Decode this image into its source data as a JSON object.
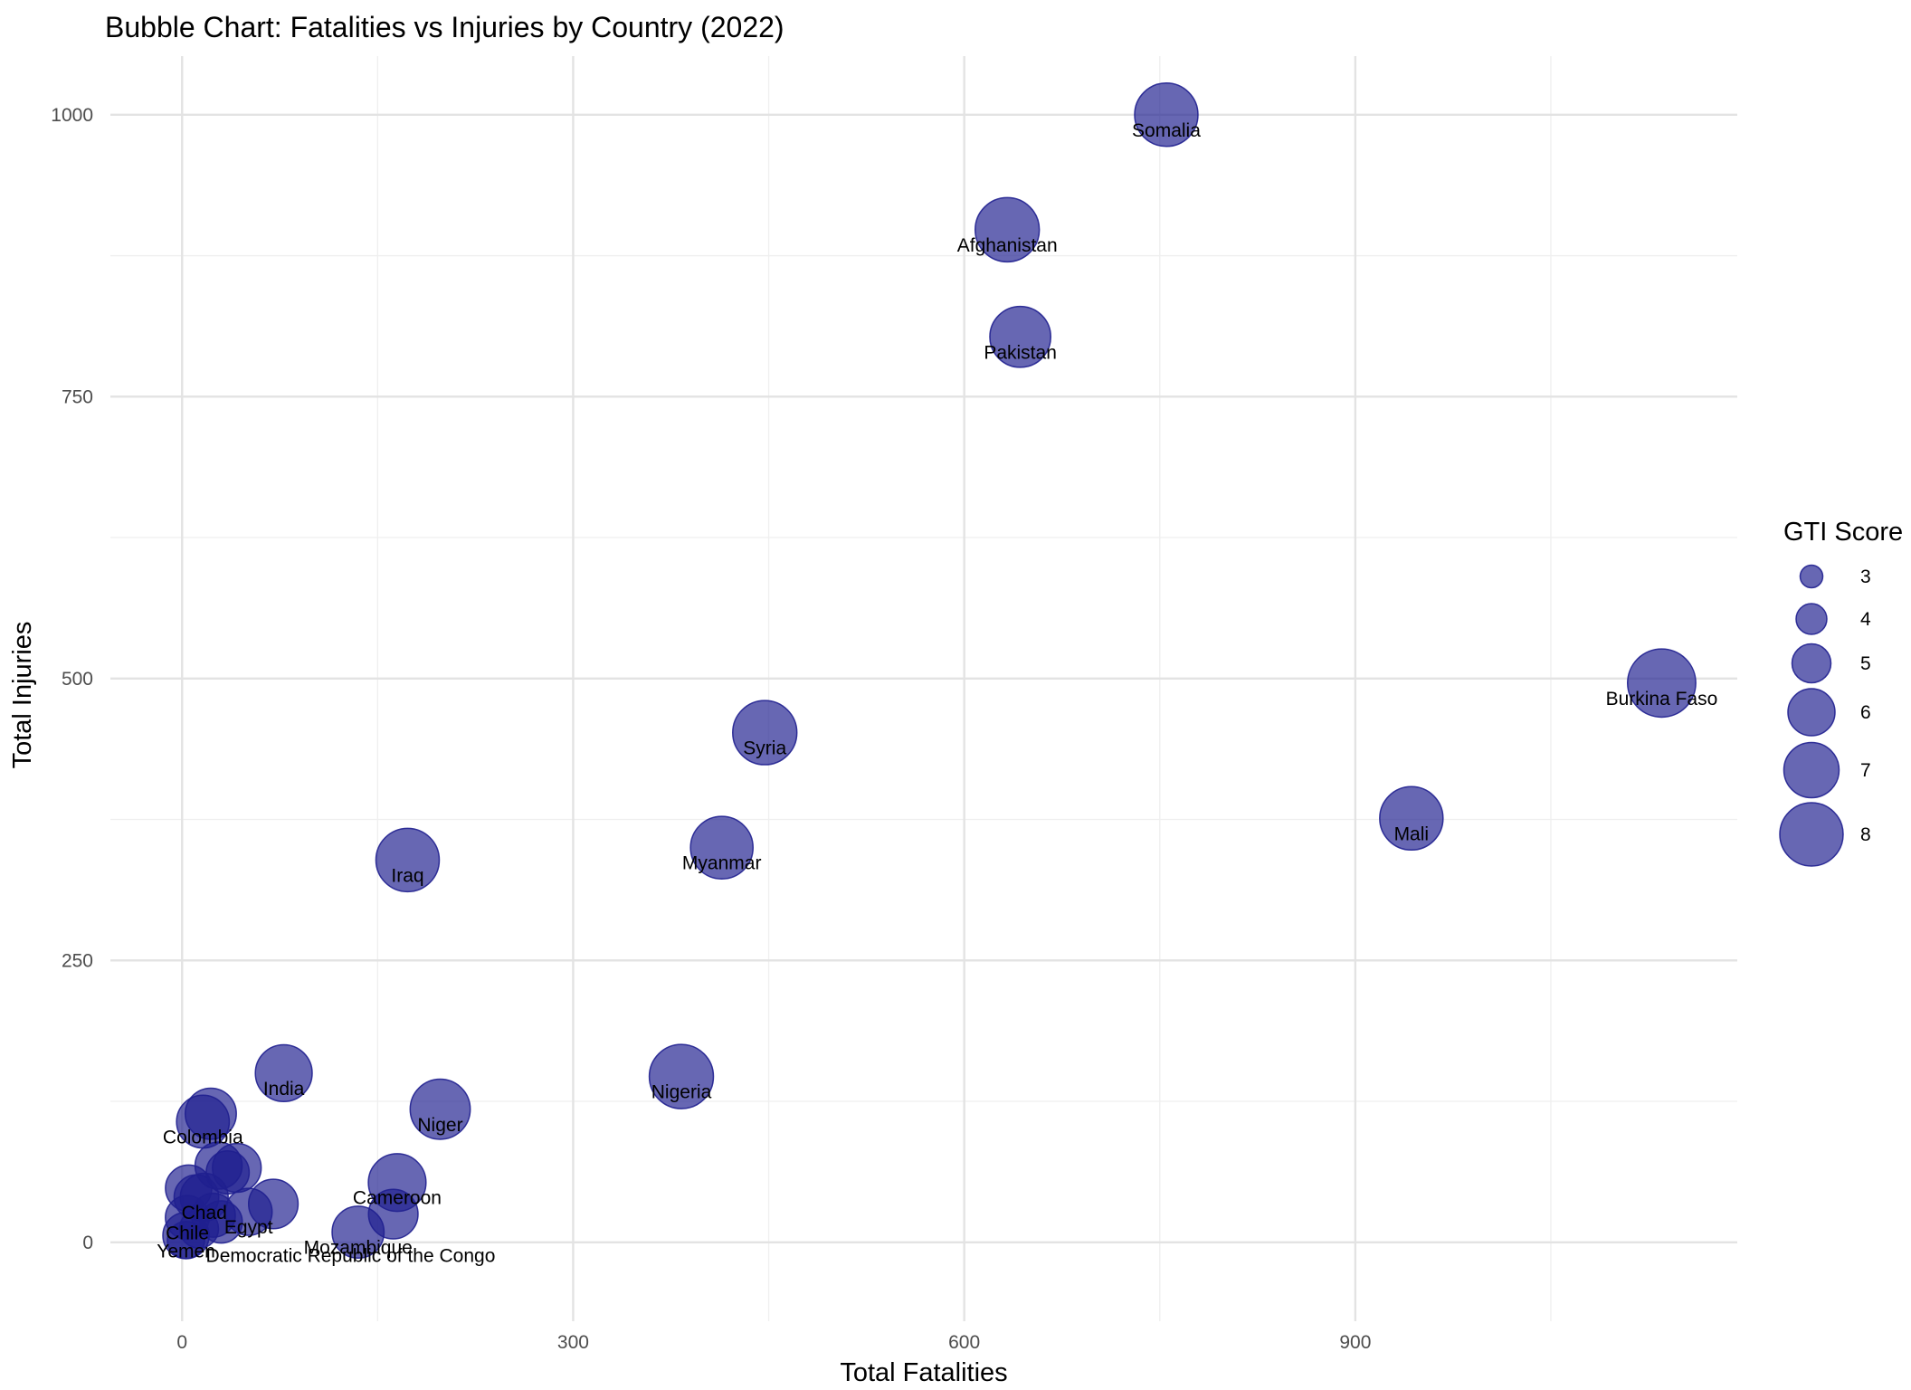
{
  "chart_data": {
    "type": "scatter",
    "title": "Bubble Chart: Fatalities vs Injuries by Country (2022)",
    "xlabel": "Total Fatalities",
    "ylabel": "Total Injuries",
    "xlim": [
      -55,
      1193
    ],
    "ylim": [
      -70,
      1052
    ],
    "x_ticks": [
      0,
      300,
      600,
      900
    ],
    "y_ticks": [
      0,
      250,
      500,
      750,
      1000
    ],
    "grid": true,
    "point_color": "#1f1f8f",
    "legend": {
      "title": "GTI Score",
      "position": "right",
      "sizes": [
        3,
        4,
        5,
        6,
        7,
        8
      ]
    },
    "points": [
      {
        "country": "Somalia",
        "x": 755,
        "y": 1000,
        "gti": 8.0
      },
      {
        "country": "Afghanistan",
        "x": 633,
        "y": 898,
        "gti": 8.1
      },
      {
        "country": "Pakistan",
        "x": 643,
        "y": 803,
        "gti": 7.7
      },
      {
        "country": "Burkina Faso",
        "x": 1135,
        "y": 496,
        "gti": 8.6
      },
      {
        "country": "Syria",
        "x": 447,
        "y": 452,
        "gti": 8.1
      },
      {
        "country": "Mali",
        "x": 943,
        "y": 376,
        "gti": 8.0
      },
      {
        "country": "Myanmar",
        "x": 414,
        "y": 350,
        "gti": 7.9
      },
      {
        "country": "Iraq",
        "x": 173,
        "y": 339,
        "gti": 8.0
      },
      {
        "country": "Nigeria",
        "x": 383,
        "y": 147,
        "gti": 8.1
      },
      {
        "country": "India",
        "x": 78,
        "y": 150,
        "gti": 7.2
      },
      {
        "country": "Niger",
        "x": 198,
        "y": 118,
        "gti": 7.6
      },
      {
        "country": "Colombia",
        "x": 16,
        "y": 107,
        "gti": 6.7
      },
      {
        "country": "",
        "x": 22,
        "y": 114,
        "gti": 6.5
      },
      {
        "country": "",
        "x": 42,
        "y": 66,
        "gti": 6.2
      },
      {
        "country": "",
        "x": 28,
        "y": 68,
        "gti": 6.0
      },
      {
        "country": "",
        "x": 35,
        "y": 62,
        "gti": 5.5
      },
      {
        "country": "Chad",
        "x": 17,
        "y": 40,
        "gti": 6.1
      },
      {
        "country": "Cameroon",
        "x": 165,
        "y": 53,
        "gti": 7.3
      },
      {
        "country": "",
        "x": 70,
        "y": 34,
        "gti": 6.3
      },
      {
        "country": "",
        "x": 5,
        "y": 48,
        "gti": 5.9
      },
      {
        "country": "",
        "x": 11,
        "y": 40,
        "gti": 5.7
      },
      {
        "country": "Chile",
        "x": 4,
        "y": 22,
        "gti": 5.6
      },
      {
        "country": "",
        "x": 24,
        "y": 24,
        "gti": 5.6
      },
      {
        "country": "Egypt",
        "x": 51,
        "y": 27,
        "gti": 6.0
      },
      {
        "country": "",
        "x": 162,
        "y": 25,
        "gti": 6.3
      },
      {
        "country": "",
        "x": 30,
        "y": 18,
        "gti": 5.4
      },
      {
        "country": "Mozambique",
        "x": 135,
        "y": 9,
        "gti": 6.6
      },
      {
        "country": "",
        "x": 13,
        "y": 12,
        "gti": 5.0
      },
      {
        "country": "Yemen",
        "x": 3,
        "y": 6,
        "gti": 5.9
      },
      {
        "country": "Democratic Republic of the Congo",
        "x": 3,
        "y": 2,
        "gti": 4.8
      }
    ]
  }
}
